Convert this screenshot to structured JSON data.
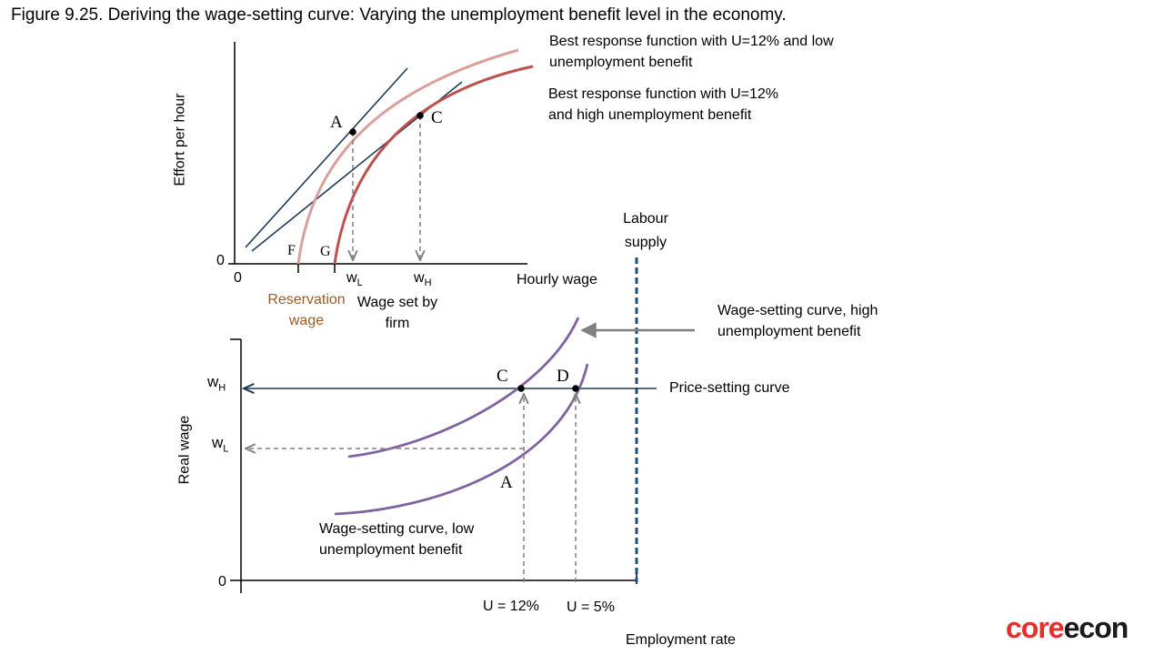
{
  "title": "Figure 9.25. Deriving the wage-setting curve: Varying the unemployment benefit level in the economy.",
  "top_panel": {
    "y_axis_label": "Effort per hour",
    "x_axis_label": "Hourly wage",
    "origin_y": "0",
    "origin_x": "0",
    "curve_low_label_line1": "Best response function with U=12% and low",
    "curve_low_label_line2": "unemployment benefit",
    "curve_high_label_line1": "Best response function with U=12%",
    "curve_high_label_line2": "and high unemployment benefit",
    "point_a": "A",
    "point_c": "C",
    "point_f": "F",
    "point_g": "G",
    "wl_base": "w",
    "wl_sub": "L",
    "wh_base": "w",
    "wh_sub": "H",
    "reservation_line1": "Reservation",
    "reservation_line2": "wage",
    "wage_set_line1": "Wage set by",
    "wage_set_line2": "firm",
    "colors": {
      "curve_low": "#d9a09a",
      "curve_high": "#c0504d",
      "tangent": "#1f3c5a"
    }
  },
  "bottom_panel": {
    "y_axis_label": "Real wage",
    "x_axis_label": "Employment rate",
    "origin_y": "0",
    "wh_base": "w",
    "wh_sub": "H",
    "wl_base": "w",
    "wl_sub": "L",
    "labour_supply_line1": "Labour",
    "labour_supply_line2": "supply",
    "ws_high_line1": "Wage-setting curve, high",
    "ws_high_line2": "unemployment benefit",
    "ws_low_line1": "Wage-setting curve, low",
    "ws_low_line2": "unemployment benefit",
    "price_setting_label": "Price-setting curve",
    "point_c": "C",
    "point_d": "D",
    "point_a": "A",
    "u12_label": "U = 12%",
    "u5_label": "U = 5%",
    "colors": {
      "wage_setting": "#8064a2",
      "price_setting": "#1f3c5a",
      "labour_supply": "#1f4e79",
      "guides": "#808080"
    }
  },
  "logo": {
    "part1": "core",
    "part2": "econ"
  }
}
